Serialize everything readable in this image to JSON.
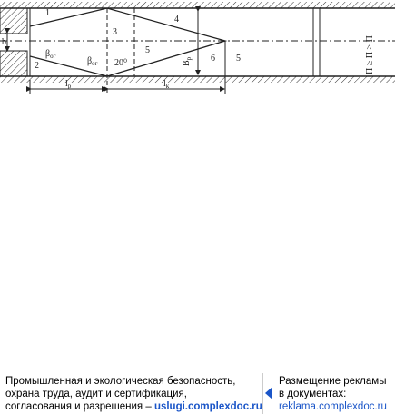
{
  "diagram": {
    "labels": [
      "1",
      "2",
      "3",
      "4",
      "5",
      "6",
      "5"
    ],
    "beta_top": {
      "symbol": "β",
      "sub": "ог"
    },
    "beta_bottom": {
      "symbol": "β",
      "sub": "ог"
    },
    "angle": "20⁰",
    "b": "b",
    "width": {
      "symbol": "B",
      "sub": "p"
    },
    "length_p": "l",
    "length_p_sub": "p",
    "length_k": "l",
    "length_k_sub": "k",
    "condition": "П  ≥ П  > П",
    "condition_subs": [
      "р",
      "б",
      "кл"
    ]
  },
  "footer": {
    "left": [
      "Промышленная и экологическая безопасность,",
      "охрана труда, аудит и сертификация,",
      "согласования и разрешения – "
    ],
    "left_link": "uslugi.complexdoc.ru",
    "right": [
      "Размещение рекламы",
      "в документах:"
    ],
    "right_link": "reklama.complexdoc.ru"
  }
}
